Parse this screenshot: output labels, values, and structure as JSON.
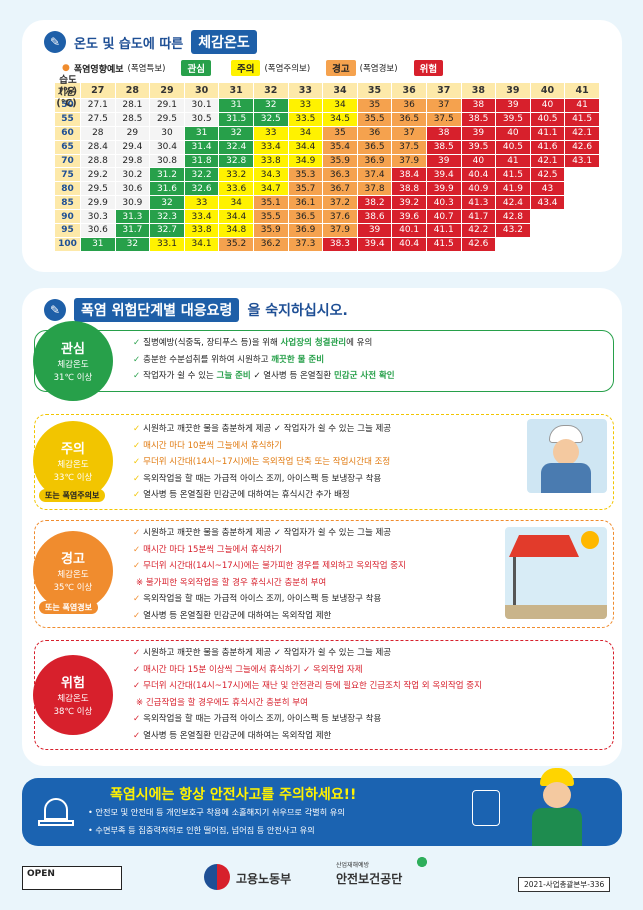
{
  "sec1": {
    "title_prefix": "온도 및 습도에 따른",
    "title_box": "체감온도"
  },
  "legend": {
    "heading": "폭염영향예보",
    "heading_sub": "(폭염특보)",
    "items": [
      {
        "label": "관심",
        "sub": ""
      },
      {
        "label": "주의",
        "sub": "(폭염주의보)"
      },
      {
        "label": "경고",
        "sub": "(폭염경보)"
      },
      {
        "label": "위험",
        "sub": ""
      }
    ]
  },
  "table": {
    "corner_temp": "기온(℃)",
    "corner_hum": "습도(%)",
    "temps": [
      "27",
      "28",
      "29",
      "30",
      "31",
      "32",
      "33",
      "34",
      "35",
      "36",
      "37",
      "38",
      "39",
      "40",
      "41"
    ],
    "humidity": [
      "50",
      "55",
      "60",
      "65",
      "70",
      "75",
      "80",
      "85",
      "90",
      "95",
      "100"
    ],
    "rows": [
      [
        "27.1",
        "28.1",
        "29.1",
        "30.1",
        "31",
        "32",
        "33",
        "34",
        "35",
        "36",
        "37",
        "38",
        "39",
        "40",
        "41"
      ],
      [
        "27.5",
        "28.5",
        "29.5",
        "30.5",
        "31.5",
        "32.5",
        "33.5",
        "34.5",
        "35.5",
        "36.5",
        "37.5",
        "38.5",
        "39.5",
        "40.5",
        "41.5"
      ],
      [
        "28",
        "29",
        "30",
        "31",
        "32",
        "33",
        "34",
        "35",
        "36",
        "37",
        "38",
        "39",
        "40",
        "41.1",
        "42.1"
      ],
      [
        "28.4",
        "29.4",
        "30.4",
        "31.4",
        "32.4",
        "33.4",
        "34.4",
        "35.4",
        "36.5",
        "37.5",
        "38.5",
        "39.5",
        "40.5",
        "41.6",
        "42.6"
      ],
      [
        "28.8",
        "29.8",
        "30.8",
        "31.8",
        "32.8",
        "33.8",
        "34.9",
        "35.9",
        "36.9",
        "37.9",
        "39",
        "40",
        "41",
        "42.1",
        "43.1"
      ],
      [
        "29.2",
        "30.2",
        "31.2",
        "32.2",
        "33.2",
        "34.3",
        "35.3",
        "36.3",
        "37.4",
        "38.4",
        "39.4",
        "40.4",
        "41.5",
        "42.5",
        ""
      ],
      [
        "29.5",
        "30.6",
        "31.6",
        "32.6",
        "33.6",
        "34.7",
        "35.7",
        "36.7",
        "37.8",
        "38.8",
        "39.9",
        "40.9",
        "41.9",
        "43",
        ""
      ],
      [
        "29.9",
        "30.9",
        "32",
        "33",
        "34",
        "35.1",
        "36.1",
        "37.2",
        "38.2",
        "39.2",
        "40.3",
        "41.3",
        "42.4",
        "43.4",
        ""
      ],
      [
        "30.3",
        "31.3",
        "32.3",
        "33.4",
        "34.4",
        "35.5",
        "36.5",
        "37.6",
        "38.6",
        "39.6",
        "40.7",
        "41.7",
        "42.8",
        "",
        ""
      ],
      [
        "30.6",
        "31.7",
        "32.7",
        "33.8",
        "34.8",
        "35.9",
        "36.9",
        "37.9",
        "39",
        "40.1",
        "41.1",
        "42.2",
        "43.2",
        "",
        ""
      ],
      [
        "31",
        "32",
        "33.1",
        "34.1",
        "35.2",
        "36.2",
        "37.3",
        "38.3",
        "39.4",
        "40.4",
        "41.5",
        "42.6",
        "",
        "",
        ""
      ]
    ]
  },
  "sec2": {
    "title_box": "폭염 위험단계별 대응요령",
    "title_suffix": "을 숙지하십시오."
  },
  "levels": [
    {
      "name": "관심",
      "line1": "체감온도",
      "line2": "31℃ 이상",
      "tag": "",
      "color": "#27a04a",
      "items": [
        [
          "질병예방(식중독, 장티푸스 등)을 위해 ",
          "사업장의 청결관리",
          "에 유의"
        ],
        [
          "충분한 수분섭취를 위하여 시원하고 ",
          "깨끗한 물 준비",
          ""
        ],
        [
          "작업자가 쉴 수 있는 ",
          "그늘 준비",
          "   ✓ 열사병 등 온열질환 ",
          "민감군 사전 확인",
          ""
        ]
      ]
    },
    {
      "name": "주의",
      "line1": "체감온도",
      "line2": "33℃ 이상",
      "tag": "또는 폭염주의보",
      "color": "#f2c500",
      "items": [
        "시원하고 깨끗한 물을 충분하게 제공      ✓ 작업자가 쉴 수 있는 그늘 제공",
        "매시간 마다 10분씩 그늘에서 휴식하기",
        "무더위 시간대(14시~17시)에는 옥외작업 단축 또는 작업시간대 조정",
        "옥외작업을 할 때는 가급적 아이스 조끼, 아이스팩 등 보냉장구 착용",
        "열사병 등 온열질환 민감군에 대하여는 휴식시간 추가 배정"
      ]
    },
    {
      "name": "경고",
      "line1": "체감온도",
      "line2": "35℃ 이상",
      "tag": "또는 폭염경보",
      "color": "#f08c2e",
      "items": [
        "시원하고 깨끗한 물을 충분하게 제공      ✓ 작업자가 쉴 수 있는 그늘 제공",
        "매시간 마다 15분씩 그늘에서 휴식하기",
        "무더위 시간대(14시~17시)에는 불가피한 경우를 제외하고 옥외작업 중지",
        "※ 불가피한 옥외작업을 할 경우 휴식시간 충분히 부여",
        "옥외작업을 할 때는 가급적 아이스 조끼, 아이스팩 등 보냉장구 착용",
        "열사병 등 온열질환 민감군에 대하여는 옥외작업 제한"
      ]
    },
    {
      "name": "위험",
      "line1": "체감온도",
      "line2": "38℃ 이상",
      "tag": "",
      "color": "#d7202c",
      "items": [
        "시원하고 깨끗한 물을 충분하게 제공                    ✓ 작업자가 쉴 수 있는 그늘 제공",
        "매시간 마다 15분 이상씩 그늘에서 휴식하기          ✓ 옥외작업 자제",
        "무더위 시간대(14시~17시)에는 재난 및 안전관리 등에 필요한 긴급조치 작업 외 옥외작업 중지",
        "※ 긴급작업을 할 경우에도 휴식시간 충분히 부여",
        "옥외작업을 할 때는 가급적 아이스 조끼, 아이스팩 등 보냉장구 착용",
        "열사병 등 온열질환 민감군에 대하여는 옥외작업 제한"
      ]
    }
  ],
  "banner": {
    "title": "폭염시에는 항상 안전사고를 주의하세요!!",
    "line1": "• 안전모 및 안전대 등 개인보호구 착용에 소홀해지기 쉬우므로 각별히 유의",
    "line2": "• 수면부족 등 집중력저하로 인한 떨어짐, 넘어짐 등 안전사고 유의"
  },
  "footer": {
    "open": "OPEN",
    "ministry": "고용노동부",
    "kosha_sub": "산업재해예방",
    "kosha": "안전보건공단",
    "code": "2021-사업총괄본부-336"
  }
}
